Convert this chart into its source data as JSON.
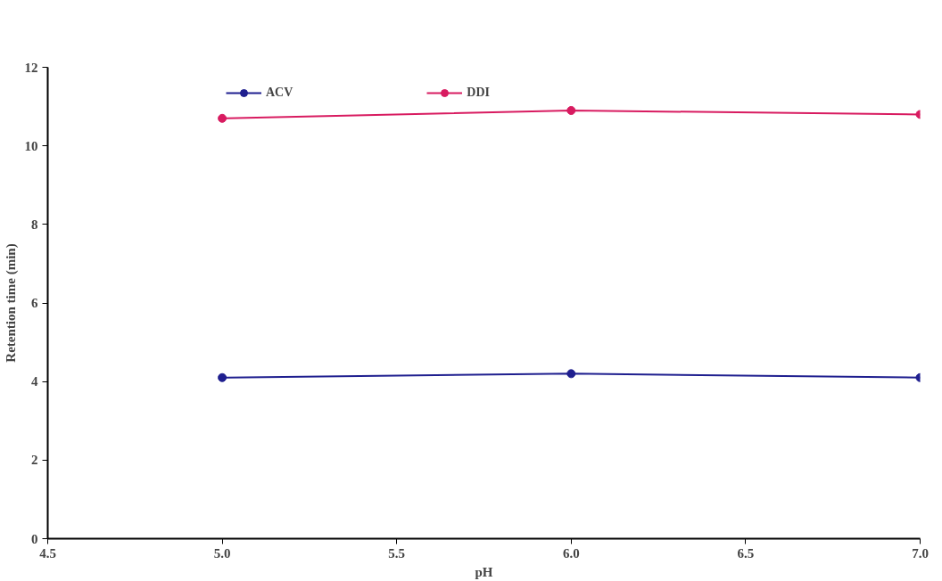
{
  "chart_data": {
    "type": "line",
    "xlabel": "pH",
    "ylabel": "Retention time (min)",
    "x": [
      5.0,
      6.0,
      7.0
    ],
    "series": [
      {
        "name": "ACV",
        "color": "#1f1f8f",
        "values": [
          4.1,
          4.2,
          4.1
        ]
      },
      {
        "name": "DDI",
        "color": "#d81b60",
        "values": [
          10.7,
          10.9,
          10.8
        ]
      }
    ],
    "xlim": [
      4.5,
      7.0
    ],
    "ylim": [
      0,
      12
    ],
    "xticks": [
      4.5,
      {
        "value": 5.0,
        "label": "5.0"
      },
      5.5,
      {
        "value": 6.0,
        "label": "6.0"
      },
      6.5,
      {
        "value": 7.0,
        "label": "7.0"
      }
    ],
    "yticks": [
      0,
      2,
      4,
      6,
      8,
      10,
      12
    ],
    "grid": false,
    "legend": "top",
    "marker": "circle",
    "line_style": "solid"
  }
}
